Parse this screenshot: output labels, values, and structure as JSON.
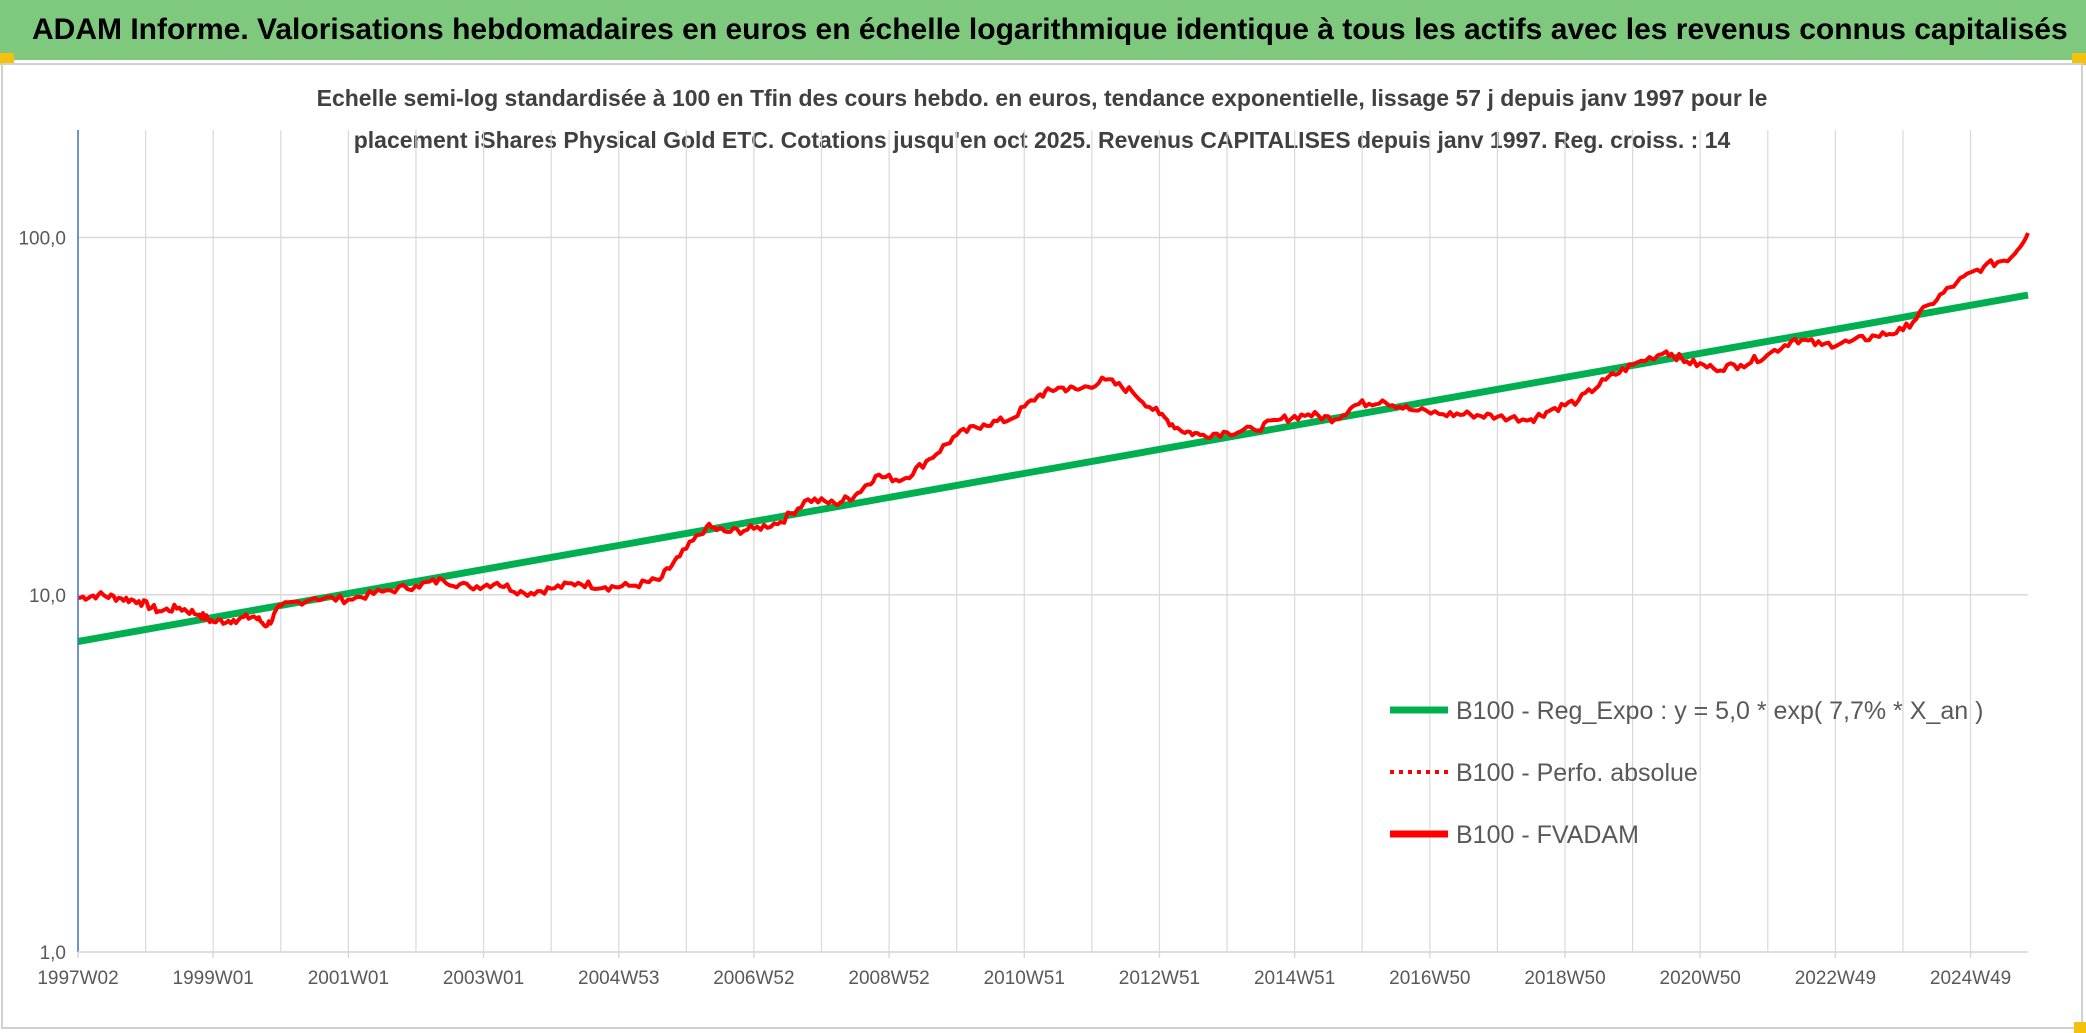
{
  "page": {
    "header_title": "ADAM Informe. Valorisations hebdomadaires en euros en échelle logarithmique identique à tous les actifs avec les revenus connus capitalisés"
  },
  "colors": {
    "header_bg": "#7fc97f",
    "trend": "#00b050",
    "series": "#ff0000",
    "grid": "#d9d9d9",
    "axis": "#4472c4",
    "text": "#595959",
    "title": "#404040"
  },
  "chart_data": {
    "type": "line",
    "y_scale": "log",
    "title_line1": "Echelle semi-log standardisée à 100 en Tfin des cours hebdo. en euros, tendance exponentielle, lissage 57 j depuis janv 1997 pour le",
    "title_line2": "placement iShares Physical Gold ETC. Cotations jusqu'en oct 2025. Revenus CAPITALISES depuis janv 1997. Reg. croiss. : 14",
    "ylim": [
      1,
      200
    ],
    "y_ticks": [
      {
        "value": 1,
        "label": "1,0"
      },
      {
        "value": 10,
        "label": "10,0"
      },
      {
        "value": 100,
        "label": "100,0"
      }
    ],
    "xlim": [
      1997.0,
      2025.85
    ],
    "x_ticks": [
      {
        "value": 1997.0,
        "label": "1997W02"
      },
      {
        "value": 1999.0,
        "label": "1999W01"
      },
      {
        "value": 2001.0,
        "label": "2001W01"
      },
      {
        "value": 2003.0,
        "label": "2003W01"
      },
      {
        "value": 2005.0,
        "label": "2004W53"
      },
      {
        "value": 2007.0,
        "label": "2006W52"
      },
      {
        "value": 2009.0,
        "label": "2008W52"
      },
      {
        "value": 2011.0,
        "label": "2010W51"
      },
      {
        "value": 2013.0,
        "label": "2012W51"
      },
      {
        "value": 2015.0,
        "label": "2014W51"
      },
      {
        "value": 2017.0,
        "label": "2016W50"
      },
      {
        "value": 2019.0,
        "label": "2018W50"
      },
      {
        "value": 2021.0,
        "label": "2020W50"
      },
      {
        "value": 2023.0,
        "label": "2022W49"
      },
      {
        "value": 2025.0,
        "label": "2024W49"
      }
    ],
    "legend_position": "right",
    "series": [
      {
        "name": "B100 - Reg_Expo : y = 5,0 * exp( 7,7% *  X_an )",
        "style": "solid-thick",
        "color": "#00b050",
        "x": [
          1997.0,
          2025.85
        ],
        "y": [
          7.4,
          69
        ]
      },
      {
        "name": "B100 - Perfo. absolue",
        "style": "dotted",
        "color": "#ff0000",
        "x": [],
        "y": []
      },
      {
        "name": "B100 - FVADAM",
        "style": "solid",
        "color": "#ff0000",
        "x": [
          1997.0,
          1997.3,
          1997.6,
          1997.9,
          1998.2,
          1998.5,
          1998.8,
          1999.0,
          1999.3,
          1999.6,
          1999.8,
          2000.0,
          2000.5,
          2001.0,
          2001.5,
          2002.0,
          2002.4,
          2002.8,
          2003.2,
          2003.6,
          2004.0,
          2004.4,
          2004.8,
          2005.2,
          2005.6,
          2005.9,
          2006.3,
          2006.6,
          2007.0,
          2007.4,
          2007.8,
          2008.2,
          2008.5,
          2008.8,
          2009.2,
          2009.6,
          2010.0,
          2010.4,
          2010.8,
          2011.2,
          2011.5,
          2011.8,
          2012.2,
          2012.6,
          2013.0,
          2013.3,
          2013.6,
          2014.0,
          2014.4,
          2014.8,
          2015.2,
          2015.6,
          2015.9,
          2016.3,
          2016.7,
          2017.2,
          2017.6,
          2018.0,
          2018.5,
          2018.8,
          2019.2,
          2019.6,
          2020.0,
          2020.5,
          2020.8,
          2021.2,
          2021.6,
          2022.0,
          2022.4,
          2022.8,
          2023.2,
          2023.6,
          2024.0,
          2024.4,
          2024.8,
          2025.2,
          2025.6,
          2025.85
        ],
        "y": [
          9.8,
          10.0,
          9.8,
          9.6,
          9.0,
          9.2,
          8.8,
          8.4,
          8.5,
          8.7,
          8.2,
          9.3,
          9.8,
          9.7,
          10.2,
          10.6,
          11.0,
          10.5,
          10.8,
          10.1,
          10.4,
          10.8,
          10.5,
          10.6,
          11.0,
          12.8,
          15.5,
          15.0,
          15.3,
          16.0,
          18.5,
          18.0,
          19.0,
          21.5,
          21.0,
          24.0,
          28.0,
          30.0,
          31.0,
          36.0,
          38.0,
          37.5,
          40.0,
          37.0,
          32.0,
          29.0,
          28.0,
          28.5,
          29.0,
          31.0,
          32.0,
          31.0,
          34.0,
          35.0,
          33.0,
          32.0,
          32.0,
          31.5,
          31.0,
          33.0,
          35.0,
          40.0,
          44.0,
          48.0,
          45.0,
          43.0,
          44.0,
          47.0,
          52.0,
          50.0,
          51.0,
          53.0,
          55.0,
          65.0,
          75.0,
          83.0,
          88.0,
          103.0
        ]
      }
    ]
  }
}
